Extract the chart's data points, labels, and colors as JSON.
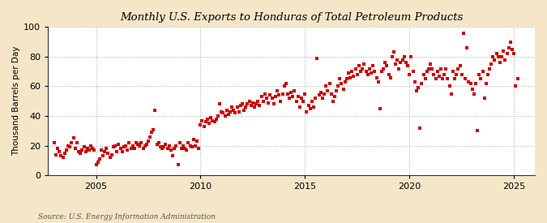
{
  "title": "Monthly U.S. Exports to Honduras of Total Petroleum Products",
  "ylabel": "Thousand Barrels per Day",
  "source": "Source: U.S. Energy Information Administration",
  "background_color": "#f5e6c8",
  "plot_bg_color": "#ffffff",
  "marker_color": "#cc0000",
  "ylim": [
    0,
    100
  ],
  "yticks": [
    0,
    20,
    40,
    60,
    80,
    100
  ],
  "xlim_start": 2002.7,
  "xlim_end": 2026.0,
  "xticks": [
    2005,
    2010,
    2015,
    2020,
    2025
  ],
  "data": [
    [
      2003.0,
      22
    ],
    [
      2003.08,
      14
    ],
    [
      2003.17,
      18
    ],
    [
      2003.25,
      16
    ],
    [
      2003.33,
      13
    ],
    [
      2003.42,
      12
    ],
    [
      2003.5,
      15
    ],
    [
      2003.58,
      17
    ],
    [
      2003.67,
      20
    ],
    [
      2003.75,
      19
    ],
    [
      2003.83,
      22
    ],
    [
      2003.92,
      25
    ],
    [
      2004.0,
      18
    ],
    [
      2004.08,
      22
    ],
    [
      2004.17,
      16
    ],
    [
      2004.25,
      15
    ],
    [
      2004.33,
      17
    ],
    [
      2004.42,
      19
    ],
    [
      2004.5,
      16
    ],
    [
      2004.58,
      18
    ],
    [
      2004.67,
      17
    ],
    [
      2004.75,
      20
    ],
    [
      2004.83,
      18
    ],
    [
      2004.92,
      17
    ],
    [
      2005.0,
      7
    ],
    [
      2005.08,
      9
    ],
    [
      2005.17,
      11
    ],
    [
      2005.25,
      17
    ],
    [
      2005.33,
      13
    ],
    [
      2005.42,
      16
    ],
    [
      2005.5,
      18
    ],
    [
      2005.58,
      15
    ],
    [
      2005.67,
      12
    ],
    [
      2005.75,
      14
    ],
    [
      2005.83,
      19
    ],
    [
      2005.92,
      20
    ],
    [
      2006.0,
      16
    ],
    [
      2006.08,
      21
    ],
    [
      2006.17,
      18
    ],
    [
      2006.25,
      16
    ],
    [
      2006.33,
      19
    ],
    [
      2006.42,
      20
    ],
    [
      2006.5,
      17
    ],
    [
      2006.58,
      22
    ],
    [
      2006.67,
      18
    ],
    [
      2006.75,
      20
    ],
    [
      2006.83,
      18
    ],
    [
      2006.92,
      22
    ],
    [
      2007.0,
      21
    ],
    [
      2007.08,
      20
    ],
    [
      2007.17,
      22
    ],
    [
      2007.25,
      18
    ],
    [
      2007.33,
      20
    ],
    [
      2007.42,
      21
    ],
    [
      2007.5,
      23
    ],
    [
      2007.58,
      26
    ],
    [
      2007.67,
      29
    ],
    [
      2007.75,
      31
    ],
    [
      2007.83,
      44
    ],
    [
      2007.92,
      21
    ],
    [
      2008.0,
      22
    ],
    [
      2008.08,
      19
    ],
    [
      2008.17,
      18
    ],
    [
      2008.25,
      19
    ],
    [
      2008.33,
      21
    ],
    [
      2008.42,
      18
    ],
    [
      2008.5,
      20
    ],
    [
      2008.58,
      17
    ],
    [
      2008.67,
      13
    ],
    [
      2008.75,
      18
    ],
    [
      2008.83,
      20
    ],
    [
      2008.92,
      7
    ],
    [
      2009.0,
      22
    ],
    [
      2009.08,
      18
    ],
    [
      2009.17,
      20
    ],
    [
      2009.25,
      18
    ],
    [
      2009.33,
      17
    ],
    [
      2009.42,
      22
    ],
    [
      2009.5,
      20
    ],
    [
      2009.58,
      19
    ],
    [
      2009.67,
      24
    ],
    [
      2009.75,
      20
    ],
    [
      2009.83,
      23
    ],
    [
      2009.92,
      18
    ],
    [
      2010.0,
      34
    ],
    [
      2010.08,
      37
    ],
    [
      2010.17,
      33
    ],
    [
      2010.25,
      36
    ],
    [
      2010.33,
      38
    ],
    [
      2010.42,
      35
    ],
    [
      2010.5,
      39
    ],
    [
      2010.58,
      37
    ],
    [
      2010.67,
      36
    ],
    [
      2010.75,
      38
    ],
    [
      2010.83,
      40
    ],
    [
      2010.92,
      48
    ],
    [
      2011.0,
      43
    ],
    [
      2011.08,
      42
    ],
    [
      2011.17,
      40
    ],
    [
      2011.25,
      44
    ],
    [
      2011.33,
      41
    ],
    [
      2011.42,
      43
    ],
    [
      2011.5,
      46
    ],
    [
      2011.58,
      44
    ],
    [
      2011.67,
      42
    ],
    [
      2011.75,
      46
    ],
    [
      2011.83,
      43
    ],
    [
      2011.92,
      47
    ],
    [
      2012.0,
      48
    ],
    [
      2012.08,
      44
    ],
    [
      2012.17,
      46
    ],
    [
      2012.25,
      48
    ],
    [
      2012.33,
      50
    ],
    [
      2012.42,
      47
    ],
    [
      2012.5,
      49
    ],
    [
      2012.58,
      46
    ],
    [
      2012.67,
      48
    ],
    [
      2012.75,
      50
    ],
    [
      2012.83,
      47
    ],
    [
      2012.92,
      53
    ],
    [
      2013.0,
      50
    ],
    [
      2013.08,
      55
    ],
    [
      2013.17,
      52
    ],
    [
      2013.25,
      49
    ],
    [
      2013.33,
      54
    ],
    [
      2013.42,
      52
    ],
    [
      2013.5,
      48
    ],
    [
      2013.58,
      53
    ],
    [
      2013.67,
      57
    ],
    [
      2013.75,
      54
    ],
    [
      2013.83,
      50
    ],
    [
      2013.92,
      55
    ],
    [
      2014.0,
      60
    ],
    [
      2014.08,
      62
    ],
    [
      2014.17,
      55
    ],
    [
      2014.25,
      52
    ],
    [
      2014.33,
      56
    ],
    [
      2014.42,
      53
    ],
    [
      2014.5,
      57
    ],
    [
      2014.58,
      50
    ],
    [
      2014.67,
      53
    ],
    [
      2014.75,
      46
    ],
    [
      2014.83,
      52
    ],
    [
      2014.92,
      50
    ],
    [
      2015.0,
      55
    ],
    [
      2015.08,
      43
    ],
    [
      2015.17,
      47
    ],
    [
      2015.25,
      45
    ],
    [
      2015.33,
      50
    ],
    [
      2015.42,
      46
    ],
    [
      2015.5,
      52
    ],
    [
      2015.58,
      79
    ],
    [
      2015.67,
      54
    ],
    [
      2015.75,
      56
    ],
    [
      2015.83,
      52
    ],
    [
      2015.92,
      55
    ],
    [
      2016.0,
      60
    ],
    [
      2016.08,
      57
    ],
    [
      2016.17,
      62
    ],
    [
      2016.25,
      55
    ],
    [
      2016.33,
      50
    ],
    [
      2016.42,
      53
    ],
    [
      2016.5,
      57
    ],
    [
      2016.58,
      60
    ],
    [
      2016.67,
      65
    ],
    [
      2016.75,
      62
    ],
    [
      2016.83,
      58
    ],
    [
      2016.92,
      63
    ],
    [
      2017.0,
      65
    ],
    [
      2017.08,
      69
    ],
    [
      2017.17,
      66
    ],
    [
      2017.25,
      70
    ],
    [
      2017.33,
      67
    ],
    [
      2017.42,
      72
    ],
    [
      2017.5,
      68
    ],
    [
      2017.58,
      74
    ],
    [
      2017.67,
      70
    ],
    [
      2017.75,
      72
    ],
    [
      2017.83,
      75
    ],
    [
      2017.92,
      70
    ],
    [
      2018.0,
      68
    ],
    [
      2018.08,
      72
    ],
    [
      2018.17,
      69
    ],
    [
      2018.25,
      74
    ],
    [
      2018.33,
      70
    ],
    [
      2018.42,
      66
    ],
    [
      2018.5,
      63
    ],
    [
      2018.58,
      45
    ],
    [
      2018.67,
      70
    ],
    [
      2018.75,
      72
    ],
    [
      2018.83,
      76
    ],
    [
      2018.92,
      74
    ],
    [
      2019.0,
      68
    ],
    [
      2019.08,
      66
    ],
    [
      2019.17,
      80
    ],
    [
      2019.25,
      83
    ],
    [
      2019.33,
      75
    ],
    [
      2019.42,
      78
    ],
    [
      2019.5,
      72
    ],
    [
      2019.58,
      76
    ],
    [
      2019.67,
      78
    ],
    [
      2019.75,
      80
    ],
    [
      2019.83,
      76
    ],
    [
      2019.92,
      74
    ],
    [
      2020.0,
      68
    ],
    [
      2020.08,
      80
    ],
    [
      2020.17,
      70
    ],
    [
      2020.25,
      63
    ],
    [
      2020.33,
      57
    ],
    [
      2020.42,
      59
    ],
    [
      2020.5,
      32
    ],
    [
      2020.58,
      62
    ],
    [
      2020.67,
      68
    ],
    [
      2020.75,
      65
    ],
    [
      2020.83,
      70
    ],
    [
      2020.92,
      72
    ],
    [
      2021.0,
      75
    ],
    [
      2021.08,
      72
    ],
    [
      2021.17,
      68
    ],
    [
      2021.25,
      65
    ],
    [
      2021.33,
      70
    ],
    [
      2021.42,
      67
    ],
    [
      2021.5,
      72
    ],
    [
      2021.58,
      65
    ],
    [
      2021.67,
      68
    ],
    [
      2021.75,
      72
    ],
    [
      2021.83,
      65
    ],
    [
      2021.92,
      60
    ],
    [
      2022.0,
      55
    ],
    [
      2022.08,
      70
    ],
    [
      2022.17,
      65
    ],
    [
      2022.25,
      68
    ],
    [
      2022.33,
      72
    ],
    [
      2022.42,
      74
    ],
    [
      2022.5,
      68
    ],
    [
      2022.58,
      96
    ],
    [
      2022.67,
      65
    ],
    [
      2022.75,
      86
    ],
    [
      2022.83,
      63
    ],
    [
      2022.92,
      62
    ],
    [
      2023.0,
      58
    ],
    [
      2023.08,
      55
    ],
    [
      2023.17,
      62
    ],
    [
      2023.25,
      30
    ],
    [
      2023.33,
      68
    ],
    [
      2023.42,
      65
    ],
    [
      2023.5,
      70
    ],
    [
      2023.58,
      52
    ],
    [
      2023.67,
      62
    ],
    [
      2023.75,
      68
    ],
    [
      2023.83,
      72
    ],
    [
      2023.92,
      75
    ],
    [
      2024.0,
      80
    ],
    [
      2024.08,
      78
    ],
    [
      2024.17,
      82
    ],
    [
      2024.25,
      80
    ],
    [
      2024.33,
      76
    ],
    [
      2024.42,
      80
    ],
    [
      2024.5,
      84
    ],
    [
      2024.58,
      78
    ],
    [
      2024.67,
      82
    ],
    [
      2024.75,
      86
    ],
    [
      2024.83,
      90
    ],
    [
      2024.92,
      85
    ],
    [
      2025.0,
      82
    ],
    [
      2025.08,
      60
    ],
    [
      2025.17,
      65
    ]
  ]
}
